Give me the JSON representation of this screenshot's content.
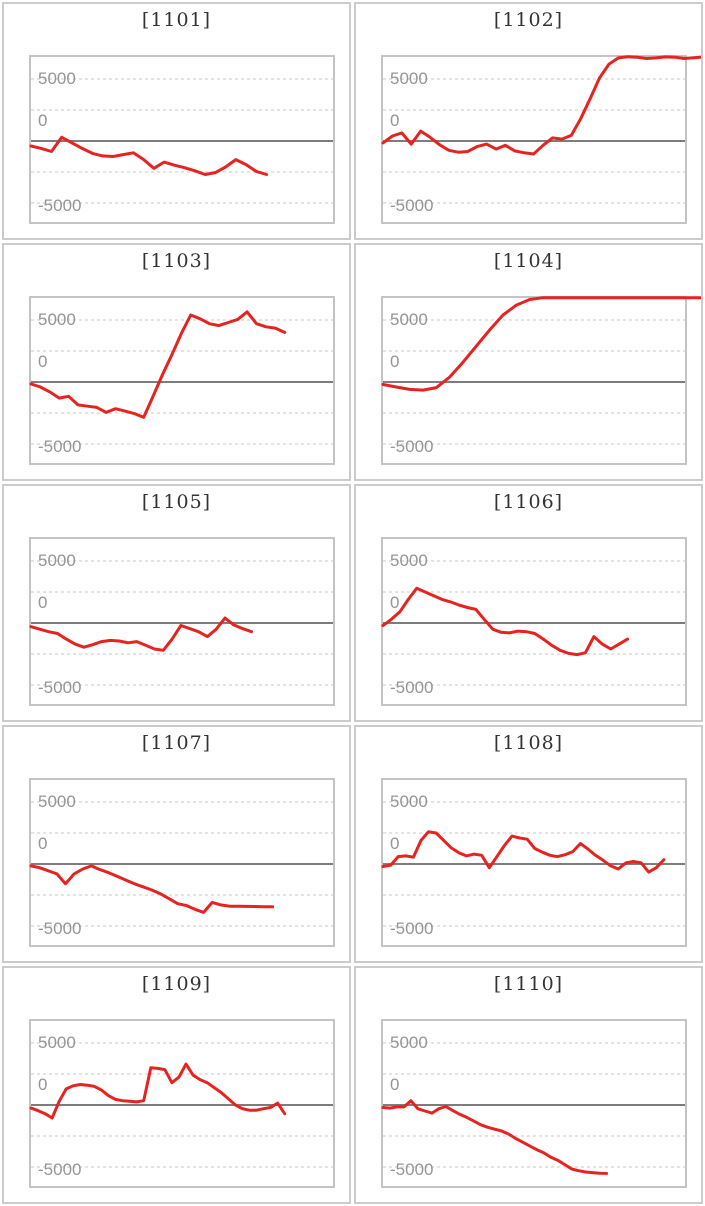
{
  "axis": {
    "max_label": "5000",
    "zero_label": "0",
    "min_label": "-5000"
  },
  "colors": {
    "series_red": "#e52320",
    "zero_line": "#7d7d7d",
    "gridline": "#e4e4e4",
    "cell_border": "#cccccc",
    "plot_border": "#c4c4c4",
    "title_text": "#333333",
    "axis_text": "#959595"
  },
  "chart_data": {
    "type": "line",
    "layout": "2-column by 5-row grid of sparkline panels",
    "ylabel": "",
    "xlabel": "",
    "yticks": [
      5000,
      0,
      -5000
    ],
    "gridline_interval": 2500,
    "ylim": [
      -6500,
      6800
    ],
    "grid": true,
    "legend": false,
    "charts": [
      {
        "title": "[1101]",
        "end_frac": 0.78,
        "values": [
          -400,
          -600,
          -850,
          300,
          -150,
          -600,
          -1000,
          -1200,
          -1250,
          -1100,
          -950,
          -1500,
          -2200,
          -1700,
          -1950,
          -2150,
          -2400,
          -2700,
          -2550,
          -2100,
          -1500,
          -1900,
          -2450,
          -2700
        ]
      },
      {
        "title": "[1102]",
        "end_frac": 1.06,
        "values": [
          -150,
          400,
          650,
          -250,
          800,
          300,
          -300,
          -750,
          -900,
          -850,
          -450,
          -250,
          -650,
          -350,
          -800,
          -950,
          -1050,
          -350,
          250,
          150,
          450,
          1800,
          3400,
          5100,
          6200,
          6700,
          6800,
          6750,
          6650,
          6700,
          6780,
          6760,
          6650,
          6720,
          6780
        ]
      },
      {
        "title": "[1103]",
        "end_frac": 0.84,
        "values": [
          -150,
          -400,
          -800,
          -1300,
          -1150,
          -1850,
          -1950,
          -2050,
          -2450,
          -2150,
          -2350,
          -2550,
          -2850,
          -1150,
          600,
          2200,
          3900,
          5400,
          5100,
          4700,
          4550,
          4800,
          5050,
          5650,
          4700,
          4450,
          4350,
          4000
        ]
      },
      {
        "title": "[1104]",
        "end_frac": 1.06,
        "values": [
          -200,
          -400,
          -600,
          -650,
          -450,
          400,
          1600,
          2900,
          4200,
          5400,
          6200,
          6650,
          6800,
          6800,
          6800,
          6800,
          6800,
          6800,
          6800,
          6800,
          6800,
          6800,
          6800,
          6800,
          6800
        ]
      },
      {
        "title": "[1105]",
        "end_frac": 0.73,
        "values": [
          -300,
          -500,
          -700,
          -850,
          -1300,
          -1700,
          -1950,
          -1750,
          -1500,
          -1400,
          -1450,
          -1600,
          -1500,
          -1800,
          -2100,
          -2200,
          -1300,
          -200,
          -450,
          -700,
          -1100,
          -500,
          400,
          -150,
          -450,
          -700
        ]
      },
      {
        "title": "[1106]",
        "end_frac": 0.81,
        "values": [
          -200,
          300,
          900,
          1900,
          2800,
          2500,
          2200,
          1900,
          1700,
          1450,
          1250,
          1100,
          300,
          -500,
          -750,
          -800,
          -650,
          -700,
          -850,
          -1300,
          -1800,
          -2200,
          -2450,
          -2550,
          -2400,
          -1100,
          -1700,
          -2100,
          -1700,
          -1300
        ]
      },
      {
        "title": "[1107]",
        "end_frac": 0.8,
        "values": [
          -150,
          -300,
          -550,
          -800,
          -1600,
          -800,
          -400,
          -150,
          -450,
          -700,
          -1000,
          -1300,
          -1600,
          -1850,
          -2100,
          -2400,
          -2800,
          -3200,
          -3350,
          -3650,
          -3900,
          -3100,
          -3300,
          -3400,
          -3400,
          -3420,
          -3430,
          -3440,
          -3450
        ]
      },
      {
        "title": "[1108]",
        "end_frac": 0.93,
        "values": [
          -200,
          -100,
          600,
          650,
          550,
          1900,
          2600,
          2500,
          1900,
          1300,
          900,
          650,
          800,
          700,
          -300,
          600,
          1500,
          2250,
          2100,
          2000,
          1250,
          950,
          700,
          600,
          750,
          1000,
          1650,
          1200,
          700,
          300,
          -150,
          -400,
          100,
          200,
          100,
          -650,
          -300,
          350
        ]
      },
      {
        "title": "[1109]",
        "end_frac": 0.84,
        "values": [
          -250,
          -450,
          -700,
          -1050,
          300,
          1300,
          1550,
          1650,
          1600,
          1500,
          1200,
          750,
          450,
          350,
          300,
          250,
          350,
          3000,
          2950,
          2850,
          1800,
          2250,
          3300,
          2400,
          2050,
          1800,
          1400,
          1000,
          500,
          0,
          -300,
          -420,
          -420,
          -300,
          -200,
          150,
          -700
        ]
      },
      {
        "title": "[1110]",
        "end_frac": 0.74,
        "values": [
          -200,
          -250,
          -150,
          -150,
          350,
          -300,
          -480,
          -650,
          -300,
          -120,
          -450,
          -750,
          -1000,
          -1300,
          -1600,
          -1800,
          -1950,
          -2100,
          -2350,
          -2700,
          -3000,
          -3300,
          -3600,
          -3850,
          -4200,
          -4450,
          -4800,
          -5150,
          -5300,
          -5400,
          -5450,
          -5500,
          -5520
        ]
      }
    ]
  }
}
